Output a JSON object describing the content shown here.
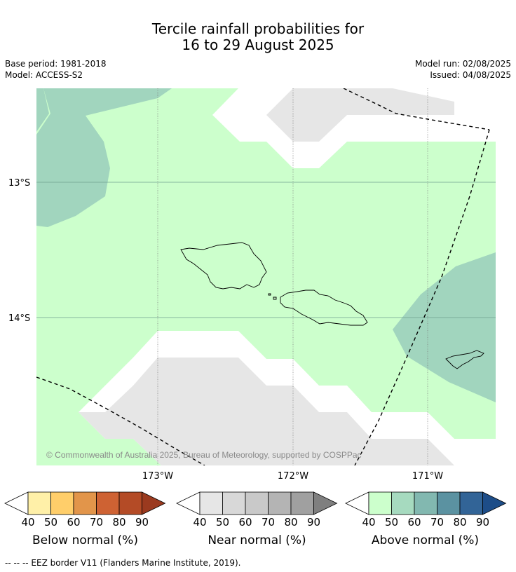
{
  "title": {
    "line1": "Tercile rainfall probabilities for",
    "line2": "16 to 29 August 2025"
  },
  "meta": {
    "base_period": "Base period: 1981-2018",
    "model": "Model: ACCESS-S2",
    "model_run": "Model run: 02/08/2025",
    "issued": "Issued: 04/08/2025"
  },
  "map": {
    "lat_labels": [
      "13°S",
      "14°S"
    ],
    "lon_labels": [
      "173°W",
      "172°W",
      "171°W"
    ],
    "copyright": "© Commonwealth of Australia 2025, Bureau of Meteorology, supported by COSPPac",
    "colors": {
      "above_40": "#ccffcc",
      "above_50": "#a1d5be",
      "near_40": "#e6e6e6",
      "white": "#ffffff"
    }
  },
  "legends": [
    {
      "name": "Below normal (%)",
      "ticks": [
        "40",
        "50",
        "60",
        "70",
        "80",
        "90"
      ],
      "colors": [
        "#ffffff",
        "#fff0a8",
        "#ffce6a",
        "#e2954a",
        "#ce6233",
        "#b44b26",
        "#9b3a1f"
      ]
    },
    {
      "name": "Near normal (%)",
      "ticks": [
        "40",
        "50",
        "60",
        "70",
        "80",
        "90"
      ],
      "colors": [
        "#ffffff",
        "#e6e6e6",
        "#d8d8d8",
        "#c9c9c9",
        "#b4b4b4",
        "#a0a0a0",
        "#7f7f7f"
      ]
    },
    {
      "name": "Above normal (%)",
      "ticks": [
        "40",
        "50",
        "60",
        "70",
        "80",
        "90"
      ],
      "colors": [
        "#ffffff",
        "#ccffcc",
        "#a6dabf",
        "#82b8b0",
        "#5b92a1",
        "#326497",
        "#1d4d88"
      ]
    }
  ],
  "footnote": "--  --  -- EEZ border V11 (Flanders Marine Institute, 2019)."
}
